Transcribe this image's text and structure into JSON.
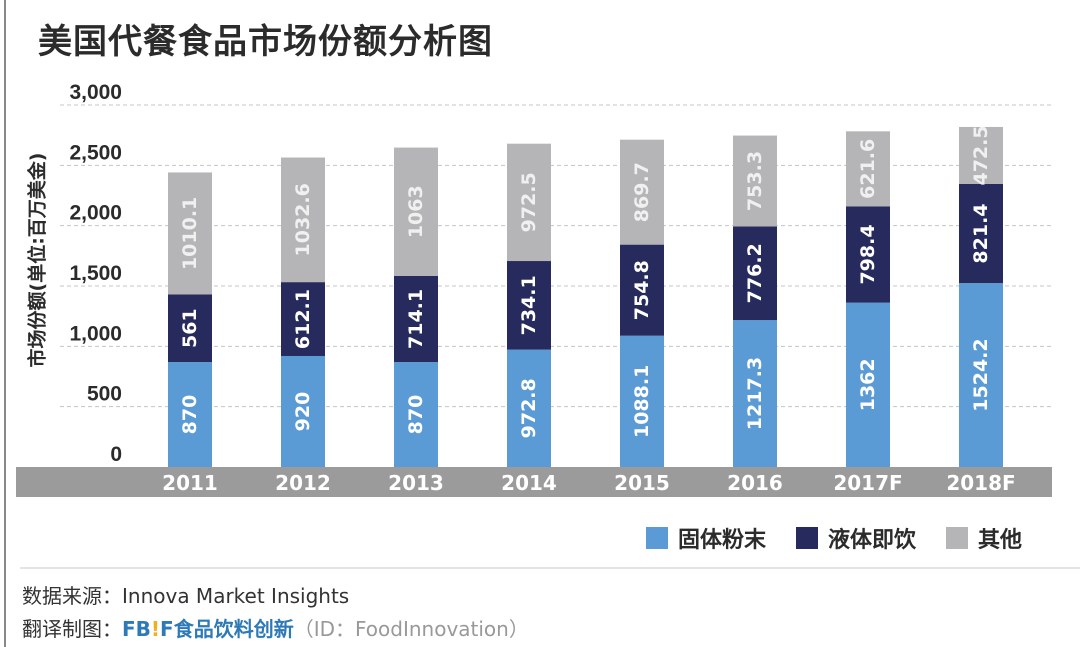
{
  "title": "美国代餐食品市场份额分析图",
  "colors": {
    "solid_powder": "#5b9bd5",
    "liquid_rtd": "#262a5c",
    "other": "#b5b5b7",
    "axis_strip": "#9b9b9b"
  },
  "chart_data": {
    "type": "bar",
    "stacked": true,
    "title": "美国代餐食品市场份额分析图",
    "ylabel": "市场份额(单位:百万美金)",
    "xlabel": "",
    "ylim": [
      0,
      3000
    ],
    "yticks": [
      "0",
      "500",
      "1,000",
      "1,500",
      "2,000",
      "2,500",
      "3,000"
    ],
    "ytick_values": [
      0,
      500,
      1000,
      1500,
      2000,
      2500,
      3000
    ],
    "grid": true,
    "legend_position": "bottom-right",
    "categories": [
      "2011",
      "2012",
      "2013",
      "2014",
      "2015",
      "2016",
      "2017F",
      "2018F"
    ],
    "series": [
      {
        "name": "固体粉末",
        "values": [
          870,
          920,
          870,
          972.8,
          1088.1,
          1217.3,
          1362,
          1524.2
        ],
        "labels": [
          "870",
          "920",
          "870",
          "972.8",
          "1088.1",
          "1217.3",
          "1362",
          "1524.2"
        ]
      },
      {
        "name": "液体即饮",
        "values": [
          561,
          612.1,
          714.1,
          734.1,
          754.8,
          776.2,
          798.4,
          821.4
        ],
        "labels": [
          "561",
          "612.1",
          "714.1",
          "734.1",
          "754.8",
          "776.2",
          "798.4",
          "821.4"
        ]
      },
      {
        "name": "其他",
        "values": [
          1010.1,
          1032.6,
          1063,
          972.5,
          869.7,
          753.3,
          621.6,
          472.5
        ],
        "labels": [
          "1010.1",
          "1032.6",
          "1063",
          "972.5",
          "869.7",
          "753.3",
          "621.6",
          "472.5"
        ]
      }
    ]
  },
  "footer": {
    "source_label": "数据来源：",
    "source": "Innova Market Insights",
    "credit_label": "翻译制图：",
    "brand_fb": "FB",
    "brand_ex": "!",
    "brand_f": "F",
    "brand_cn": "食品饮料创新",
    "id": "（ID：FoodInnovation）"
  }
}
